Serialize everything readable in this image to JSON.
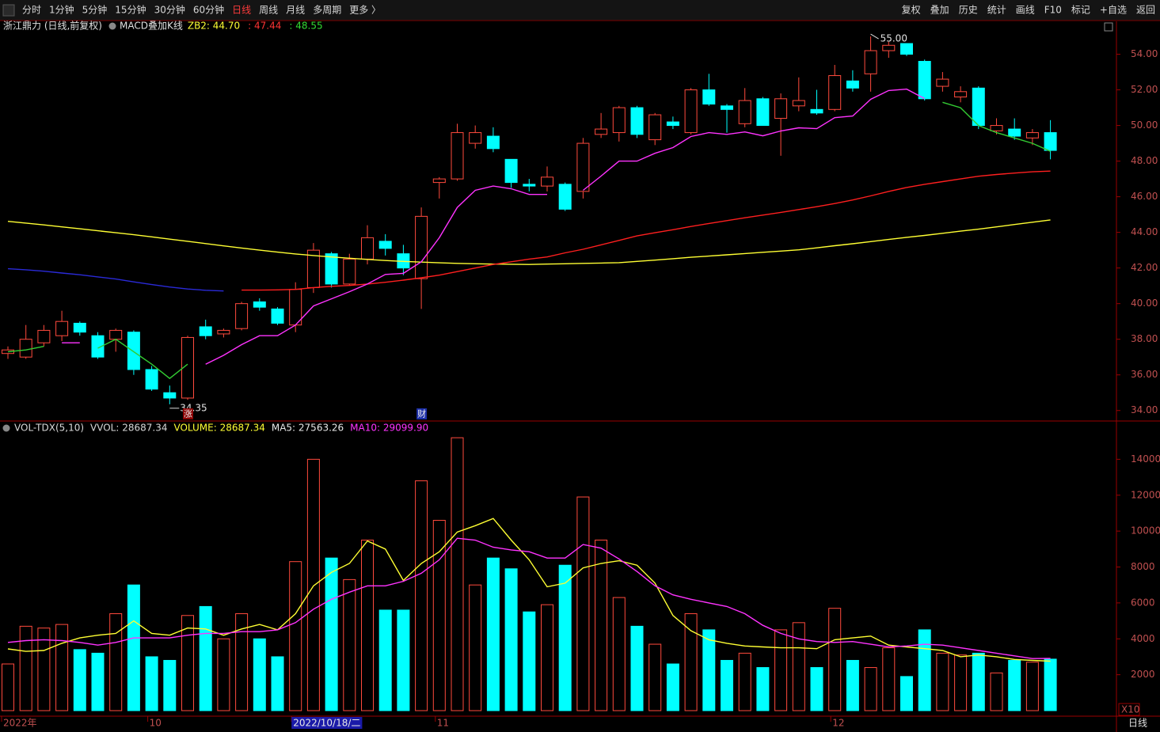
{
  "toolbar": {
    "left": [
      {
        "label": "分时"
      },
      {
        "label": "1分钟"
      },
      {
        "label": "5分钟"
      },
      {
        "label": "15分钟"
      },
      {
        "label": "30分钟"
      },
      {
        "label": "60分钟"
      },
      {
        "label": "日线",
        "color": "#ff3b3b"
      },
      {
        "label": "周线"
      },
      {
        "label": "月线"
      },
      {
        "label": "多周期"
      },
      {
        "label": "更多 〉"
      }
    ],
    "right": [
      {
        "label": "复权"
      },
      {
        "label": "叠加"
      },
      {
        "label": "历史"
      },
      {
        "label": "统计"
      },
      {
        "label": "画线"
      },
      {
        "label": "F10"
      },
      {
        "label": "标记"
      },
      {
        "label": "+自选"
      },
      {
        "label": "返回"
      }
    ]
  },
  "header": {
    "stock": "浙江鼎力 (日线,前复权)",
    "indicator": "MACD叠加K线",
    "values": [
      {
        "text": "ZB2: 44.70",
        "color": "#ffff33"
      },
      {
        "text": ": 47.44",
        "color": "#ff3333"
      },
      {
        "text": ": 48.55",
        "color": "#33dd33"
      }
    ]
  },
  "chart_data": [
    {
      "type": "candlestick",
      "up_color": "#ff4a3d",
      "down_color": "#00ffff",
      "open": [
        37.2,
        37.0,
        37.8,
        38.2,
        38.9,
        38.2,
        38.0,
        38.4,
        36.3,
        35.0,
        34.7,
        38.7,
        38.3,
        38.6,
        40.1,
        39.7,
        38.8,
        40.9,
        42.8,
        41.1,
        42.5,
        43.5,
        42.8,
        41.4,
        46.8,
        47.0,
        49.0,
        49.4,
        48.1,
        46.7,
        46.6,
        46.7,
        46.3,
        49.5,
        49.6,
        51.0,
        49.2,
        50.2,
        49.6,
        52.0,
        51.1,
        50.1,
        51.5,
        50.4,
        51.1,
        50.9,
        50.9,
        52.5,
        52.9,
        54.2,
        54.6,
        53.6,
        52.2,
        51.6,
        52.1,
        49.7,
        49.8,
        49.3,
        49.6
      ],
      "high": [
        37.6,
        38.8,
        38.8,
        39.6,
        39.0,
        38.4,
        38.6,
        38.5,
        36.5,
        35.4,
        38.2,
        39.1,
        38.6,
        40.1,
        40.3,
        39.8,
        41.2,
        43.4,
        42.9,
        42.8,
        44.4,
        43.9,
        43.3,
        45.4,
        47.1,
        50.1,
        50.0,
        49.9,
        48.1,
        47.0,
        47.7,
        46.8,
        49.3,
        50.7,
        51.1,
        51.1,
        50.7,
        50.5,
        52.1,
        52.9,
        51.2,
        52.1,
        51.6,
        51.8,
        52.7,
        52.0,
        53.4,
        53.1,
        55.0,
        54.7,
        54.6,
        53.7,
        53.0,
        52.2,
        52.2,
        50.4,
        50.4,
        49.8,
        50.3
      ],
      "low": [
        36.9,
        36.9,
        37.6,
        37.9,
        38.2,
        36.9,
        37.3,
        36.0,
        35.1,
        34.35,
        34.6,
        38.0,
        38.1,
        38.5,
        39.6,
        38.8,
        38.4,
        40.6,
        40.9,
        41.0,
        42.2,
        42.7,
        41.6,
        39.7,
        45.9,
        46.9,
        48.7,
        48.5,
        46.5,
        46.3,
        46.3,
        45.2,
        45.9,
        49.3,
        49.1,
        49.3,
        48.9,
        49.8,
        49.5,
        51.1,
        49.6,
        49.9,
        50.0,
        48.3,
        50.8,
        50.6,
        50.8,
        51.9,
        51.9,
        53.8,
        53.9,
        51.4,
        51.9,
        51.3,
        49.8,
        49.5,
        49.2,
        48.9,
        48.1
      ],
      "close": [
        37.4,
        38.0,
        38.5,
        39.0,
        38.4,
        37.0,
        38.5,
        36.3,
        35.2,
        34.7,
        38.1,
        38.2,
        38.5,
        40.0,
        39.8,
        38.9,
        40.8,
        43.0,
        41.1,
        42.5,
        43.7,
        43.1,
        42.0,
        44.9,
        47.0,
        49.6,
        49.6,
        48.7,
        46.8,
        46.6,
        47.1,
        45.3,
        49.0,
        49.8,
        51.0,
        49.5,
        50.6,
        50.0,
        52.0,
        51.2,
        50.9,
        51.4,
        50.0,
        51.5,
        51.4,
        50.7,
        52.8,
        52.1,
        54.2,
        54.5,
        54.0,
        51.5,
        52.6,
        51.9,
        50.0,
        50.0,
        49.4,
        49.6,
        48.6
      ],
      "high_labels": [
        null,
        null,
        null,
        null,
        null,
        null,
        null,
        null,
        null,
        null,
        null,
        null,
        null,
        null,
        null,
        null,
        null,
        null,
        null,
        null,
        null,
        null,
        null,
        null,
        null,
        null,
        null,
        null,
        null,
        null,
        null,
        null,
        null,
        null,
        null,
        null,
        null,
        null,
        null,
        null,
        null,
        null,
        null,
        null,
        null,
        null,
        null,
        null,
        "55.00",
        null,
        null,
        null,
        null,
        null,
        null,
        null,
        null,
        null,
        null
      ],
      "low_labels": [
        null,
        null,
        null,
        null,
        null,
        null,
        null,
        null,
        null,
        "34.35",
        null,
        null,
        null,
        null,
        null,
        null,
        null,
        null,
        null,
        null,
        null,
        null,
        null,
        null,
        null,
        null,
        null,
        null,
        null,
        null,
        null,
        null,
        null,
        null,
        null,
        null,
        null,
        null,
        null,
        null,
        null,
        null,
        null,
        null,
        null,
        null,
        null,
        null,
        null,
        null,
        null,
        null,
        null,
        null,
        null,
        null,
        null,
        null,
        null
      ],
      "event_labels": [
        null,
        null,
        null,
        null,
        null,
        null,
        null,
        null,
        null,
        null,
        {
          "text": "涨",
          "background": "#8a0000"
        },
        null,
        null,
        null,
        null,
        null,
        null,
        null,
        null,
        null,
        null,
        null,
        null,
        {
          "text": "财",
          "background": "#1c2fa8"
        },
        null,
        null,
        null,
        null,
        null,
        null,
        null,
        null,
        null,
        null,
        null,
        null,
        null,
        null,
        null,
        null,
        null,
        null,
        null,
        null,
        null,
        null,
        null,
        null,
        null,
        null,
        null,
        null,
        null,
        null,
        null,
        null,
        null,
        null,
        null
      ],
      "series": [
        {
          "color": "#ffff33",
          "values": [
            44.62,
            44.52,
            44.42,
            44.31,
            44.2,
            44.09,
            43.98,
            43.87,
            43.75,
            43.62,
            43.5,
            43.37,
            43.24,
            43.12,
            43.0,
            42.89,
            42.79,
            42.7,
            42.62,
            42.55,
            42.48,
            42.42,
            42.37,
            42.33,
            42.29,
            42.26,
            42.24,
            42.22,
            42.21,
            42.2,
            42.22,
            42.24,
            42.26,
            42.28,
            42.3,
            42.37,
            42.44,
            42.52,
            42.6,
            42.67,
            42.74,
            42.81,
            42.88,
            42.95,
            43.02,
            43.13,
            43.25,
            43.36,
            43.48,
            43.6,
            43.72,
            43.83,
            43.95,
            44.07,
            44.18,
            44.31,
            44.44,
            44.57,
            44.7
          ]
        },
        {
          "color": "#ff1f1f",
          "values": [
            null,
            null,
            null,
            null,
            null,
            null,
            null,
            null,
            null,
            null,
            null,
            null,
            null,
            40.76,
            40.76,
            40.77,
            40.8,
            40.9,
            40.97,
            41.02,
            41.1,
            41.2,
            41.32,
            41.45,
            41.6,
            41.8,
            42.0,
            42.2,
            42.35,
            42.5,
            42.62,
            42.85,
            43.05,
            43.3,
            43.55,
            43.8,
            43.98,
            44.15,
            44.33,
            44.5,
            44.66,
            44.82,
            44.97,
            45.12,
            45.28,
            45.44,
            45.62,
            45.82,
            46.05,
            46.3,
            46.52,
            46.7,
            46.85,
            47.0,
            47.15,
            47.25,
            47.33,
            47.4,
            47.44
          ]
        },
        {
          "color": "#2a2ad8",
          "values": [
            41.96,
            41.9,
            41.82,
            41.72,
            41.62,
            41.5,
            41.38,
            41.22,
            41.07,
            40.93,
            40.82,
            40.75,
            40.71,
            null,
            null,
            null,
            null,
            null,
            null,
            null,
            null,
            null,
            null,
            null,
            null,
            null,
            null,
            null,
            null,
            null,
            null,
            null,
            null,
            null,
            null,
            null,
            null,
            null,
            null,
            null,
            null,
            null,
            null,
            null,
            null,
            null,
            null,
            null,
            null,
            null,
            null,
            null,
            null,
            null,
            null,
            null,
            null,
            null,
            null
          ]
        },
        {
          "color": "#ff33ff",
          "values": [
            null,
            null,
            null,
            37.8,
            37.8,
            null,
            null,
            null,
            null,
            null,
            null,
            36.6,
            37.1,
            37.7,
            38.2,
            38.2,
            38.8,
            39.87,
            40.27,
            40.67,
            41.1,
            41.64,
            41.7,
            42.35,
            43.7,
            45.4,
            46.36,
            46.6,
            46.45,
            46.13,
            46.13,
            null,
            46.36,
            47.16,
            48.0,
            48.0,
            48.44,
            48.76,
            49.38,
            49.6,
            49.5,
            49.64,
            49.42,
            49.69,
            49.87,
            49.82,
            50.44,
            50.53,
            51.47,
            51.96,
            52.04,
            51.51,
            null,
            null,
            null,
            null,
            null,
            null,
            null
          ]
        },
        {
          "color": "#33cc33",
          "values": [
            37.3,
            37.4,
            37.6,
            null,
            null,
            37.5,
            38.0,
            37.3,
            36.6,
            35.8,
            36.6,
            null,
            null,
            null,
            null,
            null,
            null,
            null,
            null,
            null,
            null,
            null,
            null,
            null,
            null,
            null,
            null,
            null,
            null,
            null,
            null,
            null,
            null,
            null,
            null,
            null,
            null,
            null,
            null,
            null,
            null,
            null,
            null,
            null,
            null,
            null,
            null,
            null,
            null,
            null,
            null,
            null,
            51.3,
            51.0,
            50.0,
            49.6,
            49.3,
            49.0,
            48.55
          ]
        }
      ],
      "ylim": [
        33.5,
        55.8
      ],
      "yticks": [
        {
          "value": 34,
          "label": "34.00"
        },
        {
          "value": 36,
          "label": "36.00"
        },
        {
          "value": 38,
          "label": "38.00"
        },
        {
          "value": 40,
          "label": "40.00"
        },
        {
          "value": 42,
          "label": "42.00"
        },
        {
          "value": 44,
          "label": "44.00"
        },
        {
          "value": 46,
          "label": "46.00"
        },
        {
          "value": 48,
          "label": "48.00"
        },
        {
          "value": 50,
          "label": "50.00"
        },
        {
          "value": 52,
          "label": "52.00"
        },
        {
          "value": 54,
          "label": "54.00"
        }
      ]
    },
    {
      "type": "bar",
      "header": [
        {
          "text": "VOL-TDX(5,10)",
          "color": "#d8d8d8"
        },
        {
          "text": "VVOL: 28687.34",
          "color": "#d8d8d8"
        },
        {
          "text": "VOLUME: 28687.34",
          "color": "#ffff33"
        },
        {
          "text": "MA5: 27563.26",
          "color": "#e8e8e8"
        },
        {
          "text": "MA10: 29099.90",
          "color": "#ff33ff"
        }
      ],
      "categories": [
        "2022年",
        null,
        null,
        null,
        null,
        null,
        null,
        null,
        "10",
        null,
        null,
        null,
        null,
        null,
        null,
        null,
        {
          "label": "2022/10/18/二",
          "background": "#1a1aa8"
        },
        null,
        null,
        null,
        null,
        null,
        null,
        null,
        "11",
        null,
        null,
        null,
        null,
        null,
        null,
        null,
        null,
        null,
        null,
        null,
        null,
        null,
        null,
        null,
        null,
        null,
        null,
        null,
        null,
        null,
        "12",
        null,
        null,
        null,
        null,
        null,
        null,
        null,
        null,
        null,
        null,
        null,
        null
      ],
      "up_color": "#ff4a3d",
      "down_color": "#00ffff",
      "values": [
        2600,
        4700,
        4600,
        4800,
        3400,
        3200,
        5400,
        7000,
        3000,
        2800,
        5300,
        5800,
        4000,
        5400,
        4000,
        3000,
        8300,
        14000,
        8500,
        7300,
        9500,
        5600,
        5600,
        12800,
        10600,
        15200,
        7000,
        8500,
        7900,
        5500,
        5900,
        8100,
        11900,
        9500,
        6300,
        4700,
        3700,
        2600,
        5400,
        4500,
        2800,
        3200,
        2400,
        4500,
        4900,
        2400,
        5700,
        2800,
        2400,
        3500,
        1900,
        4500,
        3200,
        3100,
        3200,
        2100,
        2800,
        2700,
        2868.73
      ],
      "series": [
        {
          "color": "#ffff33",
          "values": [
            3440,
            3300,
            3350,
            3750,
            4050,
            4200,
            4300,
            5000,
            4300,
            4200,
            4600,
            4550,
            4200,
            4550,
            4800,
            4500,
            5400,
            6950,
            7700,
            8200,
            9450,
            9000,
            7250,
            8200,
            8850,
            9950,
            10300,
            10700,
            9500,
            8400,
            6900,
            7100,
            7950,
            8200,
            8350,
            8100,
            7100,
            5300,
            4450,
            3950,
            3750,
            3600,
            3550,
            3500,
            3500,
            3450,
            3950,
            4050,
            4150,
            3650,
            3550,
            3450,
            3350,
            3000,
            3100,
            3000,
            2850,
            2800,
            2756.33
          ]
        },
        {
          "color": "#ff33ff",
          "values": [
            3800,
            3900,
            3950,
            3900,
            3800,
            3650,
            3800,
            4050,
            4050,
            4050,
            4200,
            4300,
            4300,
            4400,
            4400,
            4500,
            4900,
            5650,
            6200,
            6600,
            6950,
            6950,
            7200,
            7650,
            8400,
            9600,
            9500,
            9100,
            8950,
            8850,
            8500,
            8500,
            9250,
            9050,
            8450,
            7750,
            6950,
            6450,
            6200,
            6000,
            5800,
            5400,
            4750,
            4300,
            4000,
            3850,
            3800,
            3850,
            3700,
            3550,
            3600,
            3700,
            3650,
            3500,
            3350,
            3200,
            3050,
            2900,
            2909.99
          ]
        }
      ],
      "ylim": [
        0,
        16000
      ],
      "yticks": [
        2000,
        4000,
        6000,
        8000,
        10000,
        12000,
        14000
      ],
      "unit_label": "X10",
      "period_label": "日线"
    }
  ]
}
